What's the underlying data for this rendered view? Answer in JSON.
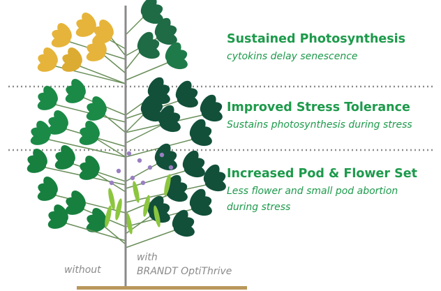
{
  "items": [
    {
      "title": "Sustained Photosynthesis",
      "subtitle": "cytokins delay senescence"
    },
    {
      "title": "Improved Stress Tolerance",
      "subtitle": "Sustains photosynthesis during stress"
    },
    {
      "title": "Increased Pod & Flower Set",
      "subtitle": "Less flower and small pod abortion during stress"
    }
  ],
  "labels": {
    "without": "without",
    "with": "with",
    "product": "BRANDT OptiThrive"
  }
}
